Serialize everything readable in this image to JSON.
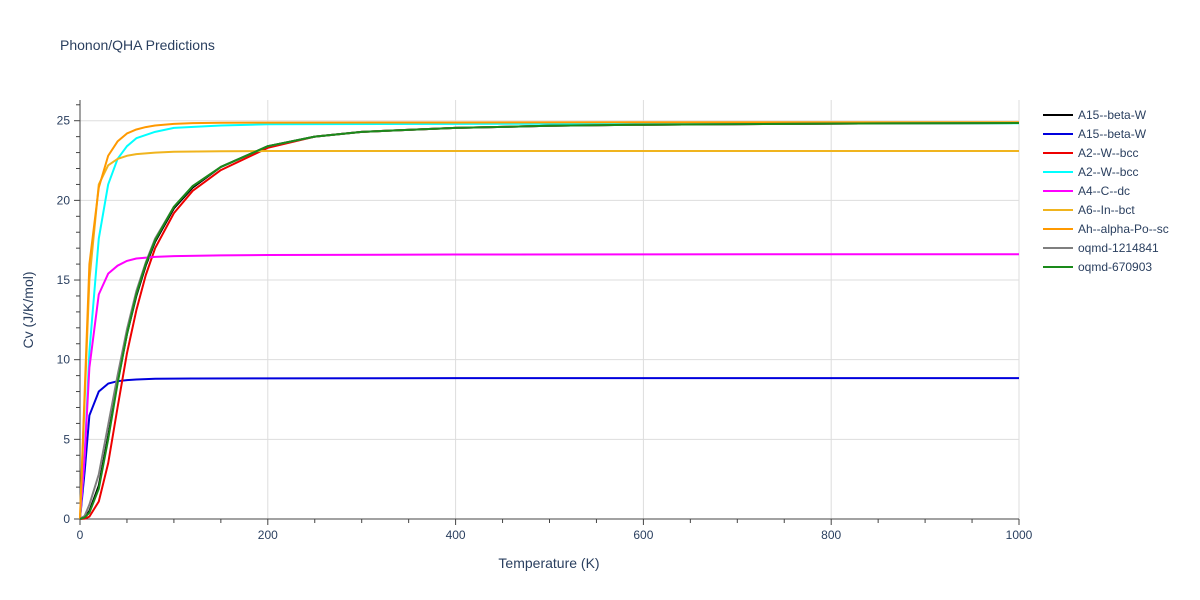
{
  "chart_data": {
    "type": "line",
    "title": "Phonon/QHA Predictions",
    "xlabel": "Temperature (K)",
    "ylabel": "Cv (J/K/mol)",
    "xlim": [
      0,
      1000
    ],
    "ylim": [
      0,
      26.3
    ],
    "xticks": [
      0,
      200,
      400,
      600,
      800,
      1000
    ],
    "yticks": [
      0,
      5,
      10,
      15,
      20,
      25
    ],
    "grid": true,
    "legend": "right",
    "series": [
      {
        "name": "A15--beta-W",
        "color": "#000000",
        "x": [
          0,
          5,
          10,
          20,
          30,
          40,
          50,
          60,
          70,
          80,
          100,
          120,
          150,
          200,
          250,
          300,
          400,
          500,
          600,
          800,
          1000
        ],
        "y": [
          0,
          0.1,
          0.5,
          2.1,
          5.2,
          8.6,
          11.6,
          14.0,
          15.9,
          17.4,
          19.5,
          20.8,
          22.1,
          23.4,
          24.0,
          24.3,
          24.55,
          24.68,
          24.75,
          24.82,
          24.86
        ]
      },
      {
        "name": "A15--beta-W",
        "color": "#0000dd",
        "x": [
          0,
          5,
          10,
          20,
          30,
          40,
          50,
          60,
          80,
          120,
          200,
          400,
          600,
          800,
          1000
        ],
        "y": [
          0,
          3.0,
          6.5,
          8.0,
          8.5,
          8.65,
          8.72,
          8.76,
          8.8,
          8.82,
          8.83,
          8.84,
          8.84,
          8.84,
          8.84
        ]
      },
      {
        "name": "A2--W--bcc",
        "color": "#ee0000",
        "x": [
          0,
          5,
          10,
          20,
          30,
          40,
          50,
          60,
          70,
          80,
          100,
          120,
          150,
          200,
          250,
          300,
          400,
          500,
          600,
          800,
          1000
        ],
        "y": [
          0,
          0.02,
          0.15,
          1.1,
          3.5,
          7.0,
          10.4,
          13.1,
          15.3,
          17.0,
          19.2,
          20.6,
          21.9,
          23.3,
          24.0,
          24.3,
          24.55,
          24.68,
          24.75,
          24.82,
          24.86
        ]
      },
      {
        "name": "A2--W--bcc",
        "color": "#00ffff",
        "x": [
          0,
          5,
          10,
          20,
          30,
          40,
          50,
          60,
          80,
          100,
          150,
          200,
          400,
          600,
          800,
          1000
        ],
        "y": [
          0,
          4.0,
          10.5,
          17.6,
          21.0,
          22.6,
          23.4,
          23.9,
          24.3,
          24.55,
          24.7,
          24.78,
          24.8,
          24.82,
          24.83,
          24.84
        ]
      },
      {
        "name": "A4--C--dc",
        "color": "#ff00ff",
        "x": [
          0,
          5,
          10,
          20,
          30,
          40,
          50,
          60,
          80,
          100,
          150,
          200,
          400,
          600,
          800,
          1000
        ],
        "y": [
          0,
          4.0,
          9.5,
          14.1,
          15.4,
          15.9,
          16.2,
          16.35,
          16.45,
          16.5,
          16.55,
          16.57,
          16.6,
          16.61,
          16.62,
          16.62
        ]
      },
      {
        "name": "A6--In--bct",
        "color": "#f0b41e",
        "x": [
          0,
          5,
          10,
          20,
          30,
          40,
          50,
          60,
          80,
          100,
          150,
          200,
          400,
          600,
          800,
          1000
        ],
        "y": [
          0,
          7.5,
          15.0,
          21.0,
          22.2,
          22.6,
          22.8,
          22.9,
          23.0,
          23.05,
          23.08,
          23.1,
          23.1,
          23.1,
          23.1,
          23.1
        ]
      },
      {
        "name": "Ah--alpha-Po--sc",
        "color": "#ff9900",
        "x": [
          0,
          5,
          10,
          20,
          30,
          40,
          50,
          60,
          70,
          80,
          100,
          120,
          150,
          200,
          400,
          600,
          800,
          1000
        ],
        "y": [
          0,
          8.0,
          16.0,
          20.8,
          22.8,
          23.7,
          24.2,
          24.45,
          24.6,
          24.7,
          24.8,
          24.85,
          24.87,
          24.88,
          24.89,
          24.9,
          24.9,
          24.9
        ]
      },
      {
        "name": "oqmd-1214841",
        "color": "#7f7f7f",
        "x": [
          0,
          5,
          10,
          20,
          30,
          40,
          50,
          60,
          70,
          80,
          100,
          120,
          150,
          200,
          250,
          300,
          400,
          500,
          600,
          800,
          1000
        ],
        "y": [
          0,
          0.2,
          0.9,
          2.8,
          5.9,
          9.0,
          11.9,
          14.3,
          16.1,
          17.6,
          19.6,
          20.9,
          22.1,
          23.4,
          24.0,
          24.3,
          24.55,
          24.68,
          24.75,
          24.82,
          24.86
        ]
      },
      {
        "name": "oqmd-670903",
        "color": "#1a8a1a",
        "x": [
          0,
          5,
          10,
          20,
          30,
          40,
          50,
          60,
          70,
          80,
          100,
          120,
          150,
          200,
          250,
          300,
          400,
          500,
          600,
          800,
          1000
        ],
        "y": [
          0,
          0.1,
          0.4,
          1.9,
          5.0,
          8.5,
          11.6,
          14.1,
          16.0,
          17.5,
          19.6,
          20.9,
          22.1,
          23.4,
          24.0,
          24.3,
          24.55,
          24.68,
          24.75,
          24.82,
          24.86
        ]
      }
    ]
  }
}
